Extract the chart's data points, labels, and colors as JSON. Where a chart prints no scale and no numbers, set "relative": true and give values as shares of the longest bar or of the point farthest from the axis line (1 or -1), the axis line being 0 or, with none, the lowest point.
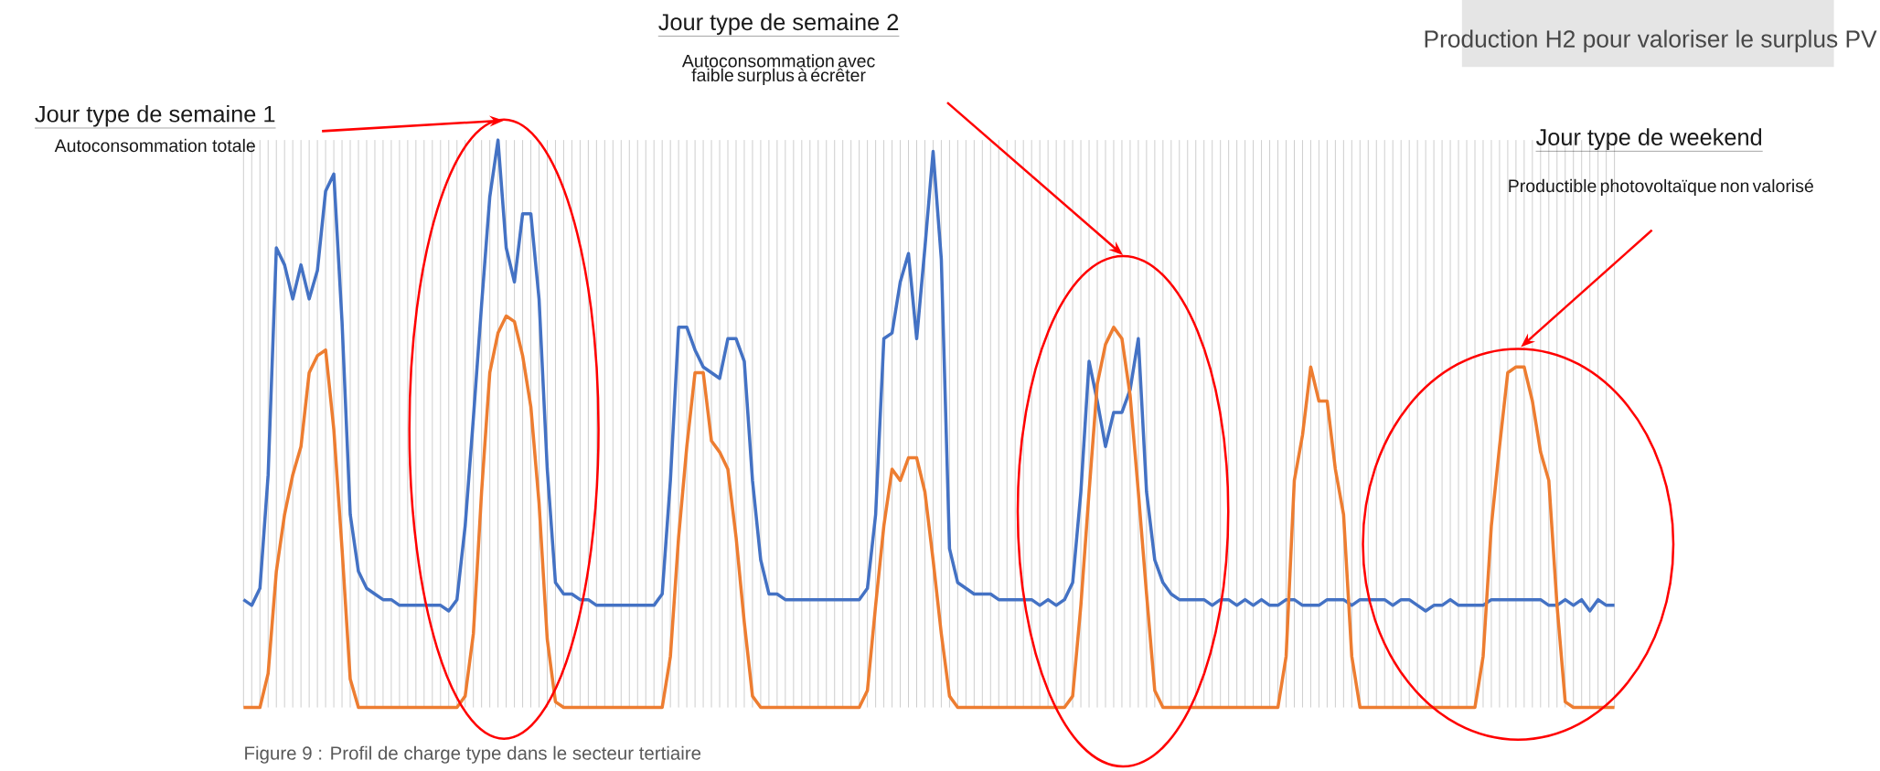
{
  "chart_data": {
    "type": "line",
    "title": "Production H2 pour valoriser le surplus PV",
    "annotations": [
      "Jour type de semaine 1",
      "Autoconsommation totale",
      "Jour type de semaine 2",
      "Autoconsommation avec faible surplus à écrêter",
      "Jour type de weekend",
      "Productible photovoltaïque non valorisé",
      "Figure 9 : Profil de charge type dans le secteur tertiaire"
    ],
    "relative": true,
    "grid": "x",
    "categories": [
      null,
      null,
      null,
      null,
      null,
      null,
      null,
      null,
      null,
      null,
      null,
      null,
      null,
      null,
      null,
      null,
      null,
      null,
      null,
      null,
      null,
      null,
      null,
      null,
      null,
      null,
      null,
      null,
      null,
      null,
      null,
      null,
      null,
      null,
      null,
      null,
      null,
      null,
      null,
      null,
      null,
      null,
      null,
      null,
      null,
      null,
      null,
      null,
      null,
      null,
      null,
      null,
      null,
      null,
      null,
      null,
      null,
      null,
      null,
      null,
      null,
      null,
      null,
      null,
      null,
      null,
      null,
      null,
      null,
      null,
      null,
      null,
      null,
      null,
      null,
      null,
      null,
      null,
      null,
      null,
      null,
      null,
      null,
      null,
      null,
      null,
      null,
      null,
      null,
      null,
      null,
      null,
      null,
      null,
      null,
      null,
      null,
      null,
      null,
      null,
      null,
      null,
      null,
      null,
      null,
      null,
      null,
      null,
      null,
      null,
      null,
      null,
      null,
      null,
      null,
      null,
      null,
      null,
      null,
      null,
      null,
      null,
      null,
      null,
      null,
      null,
      null,
      null,
      null,
      null,
      null,
      null,
      null,
      null,
      null,
      null,
      null,
      null,
      null,
      null,
      null,
      null,
      null,
      null,
      null,
      null,
      null,
      null,
      null,
      null,
      null,
      null,
      null,
      null,
      null,
      null,
      null,
      null,
      null,
      null,
      null,
      null,
      null,
      null,
      null,
      null,
      null,
      null
    ],
    "series": [
      {
        "color": "#4472c4",
        "values": [
          0.19,
          0.18,
          0.21,
          0.41,
          0.81,
          0.78,
          0.72,
          0.78,
          0.72,
          0.77,
          0.91,
          0.94,
          0.68,
          0.34,
          0.24,
          0.21,
          0.2,
          0.19,
          0.19,
          0.18,
          0.18,
          0.18,
          0.18,
          0.18,
          0.18,
          0.17,
          0.19,
          0.32,
          0.51,
          0.71,
          0.9,
          1.0,
          0.81,
          0.75,
          0.87,
          0.87,
          0.72,
          0.42,
          0.22,
          0.2,
          0.2,
          0.19,
          0.19,
          0.18,
          0.18,
          0.18,
          0.18,
          0.18,
          0.18,
          0.18,
          0.18,
          0.2,
          0.4,
          0.67,
          0.67,
          0.63,
          0.6,
          0.59,
          0.58,
          0.65,
          0.65,
          0.61,
          0.4,
          0.26,
          0.2,
          0.2,
          0.19,
          0.19,
          0.19,
          0.19,
          0.19,
          0.19,
          0.19,
          0.19,
          0.19,
          0.19,
          0.21,
          0.34,
          0.65,
          0.66,
          0.75,
          0.8,
          0.65,
          0.81,
          0.98,
          0.79,
          0.28,
          0.22,
          0.21,
          0.2,
          0.2,
          0.2,
          0.19,
          0.19,
          0.19,
          0.19,
          0.19,
          0.18,
          0.19,
          0.18,
          0.19,
          0.22,
          0.38,
          0.61,
          0.54,
          0.46,
          0.52,
          0.52,
          0.56,
          0.65,
          0.38,
          0.26,
          0.22,
          0.2,
          0.19,
          0.19,
          0.19,
          0.19,
          0.18,
          0.19,
          0.19,
          0.18,
          0.19,
          0.18,
          0.19,
          0.18,
          0.18,
          0.19,
          0.19,
          0.18,
          0.18,
          0.18,
          0.19,
          0.19,
          0.19,
          0.18,
          0.19,
          0.19,
          0.19,
          0.19,
          0.18,
          0.19,
          0.19,
          0.18,
          0.17,
          0.18,
          0.18,
          0.19,
          0.18,
          0.18,
          0.18,
          0.18,
          0.19,
          0.19,
          0.19,
          0.19,
          0.19,
          0.19,
          0.19,
          0.18,
          0.18,
          0.19,
          0.18,
          0.19,
          0.17,
          0.19,
          0.18,
          0.18
        ]
      },
      {
        "color": "#ed7d31",
        "values": [
          0,
          0,
          0,
          0.06,
          0.24,
          0.34,
          0.41,
          0.46,
          0.59,
          0.62,
          0.63,
          0.49,
          0.28,
          0.05,
          0,
          0,
          0,
          0,
          0,
          0,
          0,
          0,
          0,
          0,
          0,
          0,
          0,
          0.02,
          0.13,
          0.38,
          0.59,
          0.66,
          0.69,
          0.68,
          0.62,
          0.53,
          0.36,
          0.12,
          0.01,
          0,
          0,
          0,
          0,
          0,
          0,
          0,
          0,
          0,
          0,
          0,
          0,
          0,
          0.09,
          0.3,
          0.46,
          0.59,
          0.59,
          0.47,
          0.45,
          0.42,
          0.3,
          0.15,
          0.02,
          0,
          0,
          0,
          0,
          0,
          0,
          0,
          0,
          0,
          0,
          0,
          0,
          0,
          0.03,
          0.18,
          0.32,
          0.42,
          0.4,
          0.44,
          0.44,
          0.38,
          0.26,
          0.13,
          0.02,
          0,
          0,
          0,
          0,
          0,
          0,
          0,
          0,
          0,
          0,
          0,
          0,
          0,
          0,
          0.02,
          0.18,
          0.38,
          0.57,
          0.64,
          0.67,
          0.65,
          0.55,
          0.38,
          0.2,
          0.03,
          0,
          0,
          0,
          0,
          0,
          0,
          0,
          0,
          0,
          0,
          0,
          0,
          0,
          0,
          0,
          0.09,
          0.4,
          0.48,
          0.6,
          0.54,
          0.54,
          0.42,
          0.34,
          0.09,
          0,
          0,
          0,
          0,
          0,
          0,
          0,
          0,
          0,
          0,
          0,
          0,
          0,
          0,
          0,
          0.09,
          0.32,
          0.46,
          0.59,
          0.6,
          0.6,
          0.54,
          0.45,
          0.4,
          0.18,
          0.01,
          0,
          0,
          0,
          0,
          0,
          0
        ]
      }
    ]
  }
}
